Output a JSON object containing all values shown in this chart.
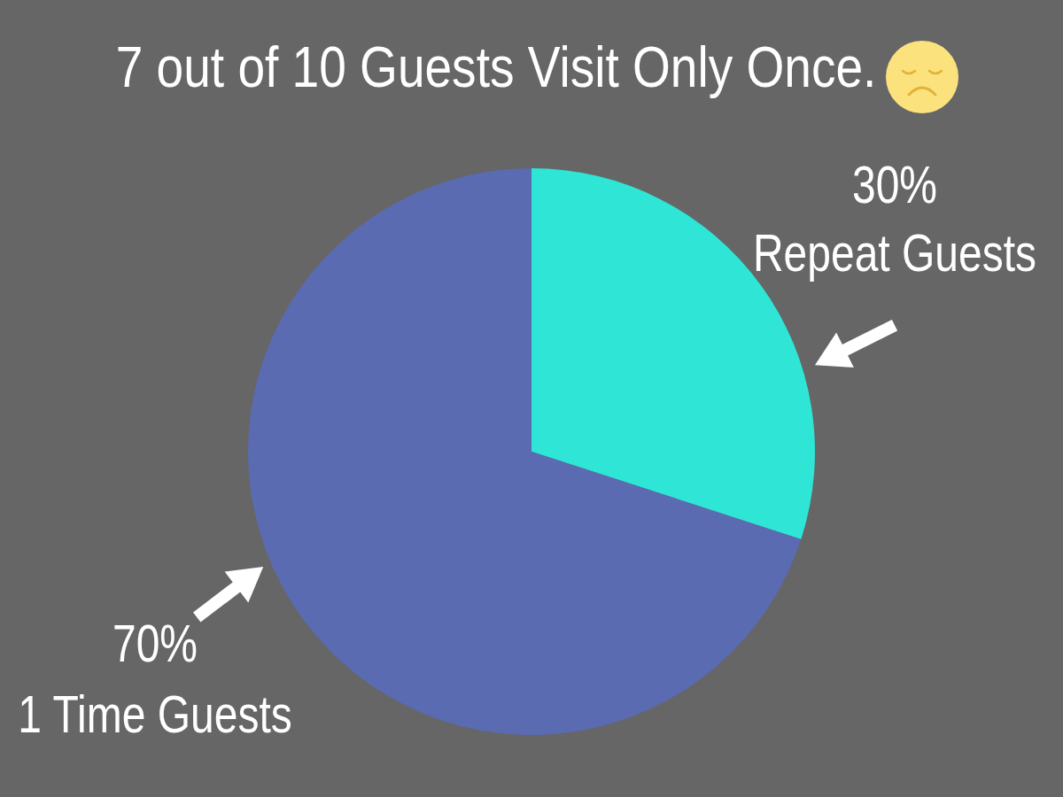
{
  "chart_data": {
    "type": "pie",
    "title": "7 out of 10 Guests Visit Only Once.",
    "categories": [
      "Repeat Guests",
      "1 Time Guests"
    ],
    "values": [
      30,
      70
    ],
    "colors": [
      "#2ee5d6",
      "#5a6bb1"
    ],
    "value_labels": [
      "30%",
      "70%"
    ],
    "legend": false
  }
}
